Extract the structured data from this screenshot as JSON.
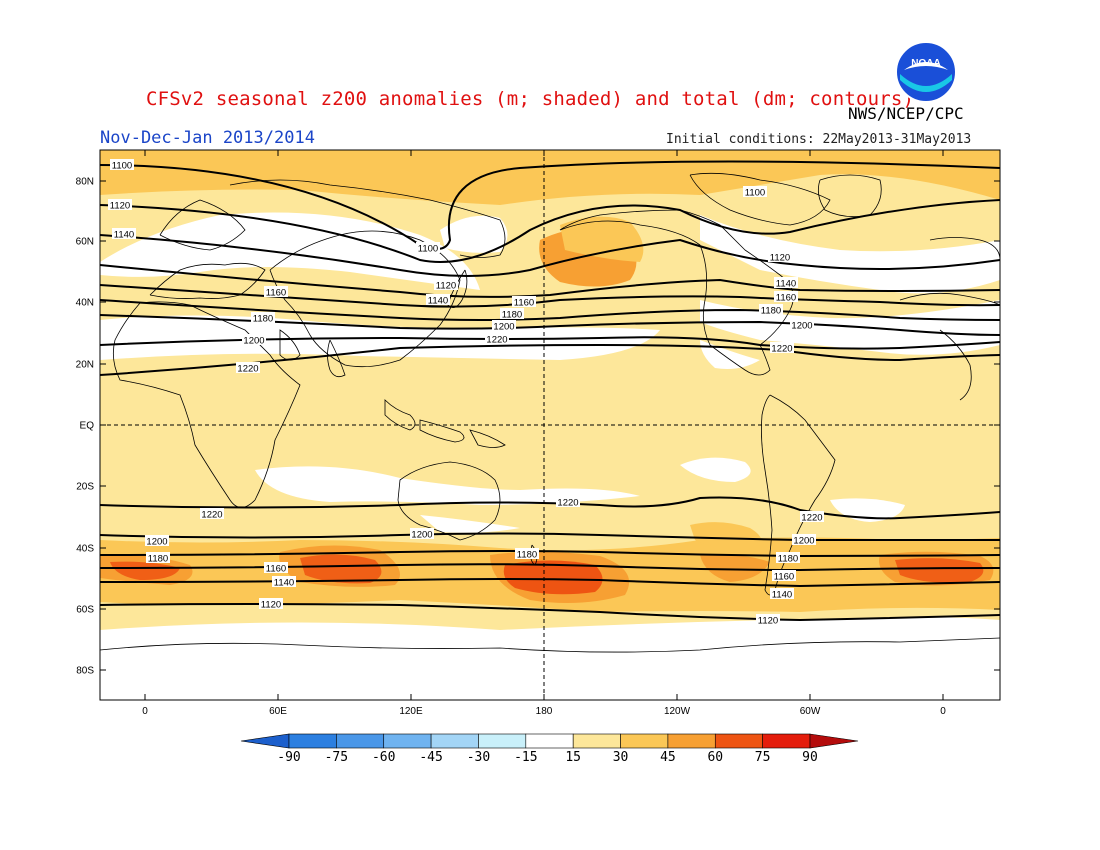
{
  "title": "CFSv2 seasonal z200 anomalies (m; shaded) and total (dm; contours)",
  "agency": "NWS/NCEP/CPC",
  "period": "Nov-Dec-Jan 2013/2014",
  "initial_conditions": "Initial conditions: 22May2013-31May2013",
  "logo_text": "NOAA",
  "lat_labels": [
    "80N",
    "60N",
    "40N",
    "20N",
    "EQ",
    "20S",
    "40S",
    "60S",
    "80S"
  ],
  "lon_labels": [
    "0",
    "60E",
    "120E",
    "180",
    "120W",
    "60W",
    "0"
  ],
  "colorbar": {
    "labels": [
      "-90",
      "-75",
      "-60",
      "-45",
      "-30",
      "-15",
      "15",
      "30",
      "45",
      "60",
      "75",
      "90"
    ],
    "colors": [
      "#1c5fcc",
      "#2c7fe0",
      "#4a97e8",
      "#6fb3f0",
      "#a3d5f6",
      "#c9f0fa",
      "#ffffff",
      "#fde79a",
      "#fbc756",
      "#f7a033",
      "#ee5412",
      "#e41d0c",
      "#b40c0c"
    ]
  },
  "contour_labels": [
    "1100",
    "1100",
    "1100",
    "1120",
    "1120",
    "1120",
    "1140",
    "1140",
    "1140",
    "1160",
    "1160",
    "1160",
    "1180",
    "1180",
    "1180",
    "1200",
    "1200",
    "1200",
    "1220",
    "1220",
    "1220",
    "1220",
    "1220",
    "1220",
    "1200",
    "1200",
    "1200",
    "1180",
    "1180",
    "1180",
    "1160",
    "1160",
    "1140",
    "1140",
    "1120",
    "1120"
  ]
}
